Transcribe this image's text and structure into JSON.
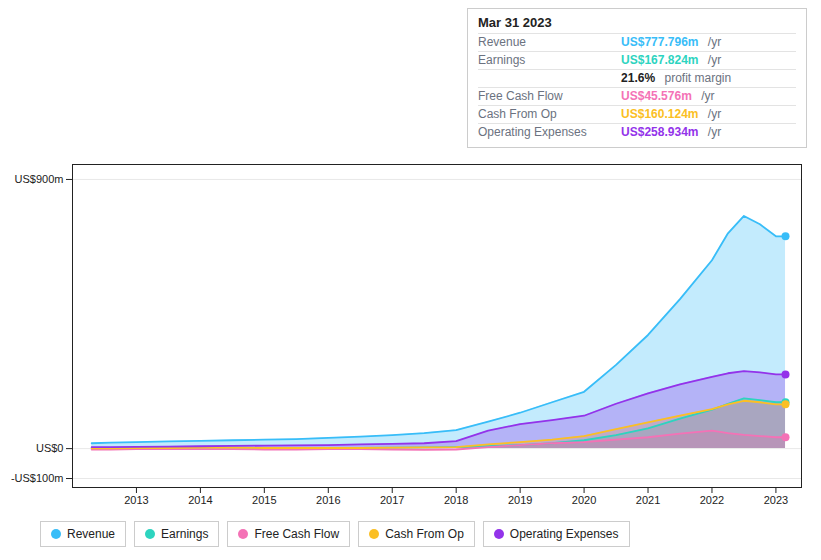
{
  "chart_data": {
    "type": "area",
    "x": [
      2012.3,
      2012.6,
      2013,
      2013.5,
      2014,
      2014.5,
      2015,
      2015.5,
      2016,
      2016.5,
      2017,
      2017.5,
      2018,
      2018.5,
      2019,
      2019.5,
      2020,
      2020.5,
      2021,
      2021.5,
      2022,
      2022.25,
      2022.5,
      2022.75,
      2023,
      2023.15
    ],
    "series": [
      {
        "name": "Revenue",
        "color": "#38bdf8",
        "values": [
          18,
          20,
          22,
          24,
          26,
          28,
          30,
          32,
          36,
          40,
          45,
          52,
          62,
          90,
          120,
          155,
          190,
          280,
          380,
          500,
          630,
          720,
          778,
          750,
          710,
          710
        ]
      },
      {
        "name": "Earnings",
        "color": "#2dd4bf",
        "values": [
          2,
          2,
          3,
          3,
          3,
          3,
          2,
          2,
          2,
          2,
          3,
          4,
          5,
          8,
          12,
          18,
          28,
          45,
          68,
          100,
          130,
          150,
          168,
          162,
          155,
          155
        ]
      },
      {
        "name": "Free Cash Flow",
        "color": "#f472b6",
        "values": [
          -3,
          -3,
          -2,
          -2,
          -2,
          -2,
          -3,
          -3,
          -2,
          -2,
          -3,
          -4,
          -3,
          5,
          12,
          18,
          22,
          30,
          38,
          50,
          60,
          52,
          46,
          42,
          38,
          38
        ]
      },
      {
        "name": "Cash From Op",
        "color": "#fbbf24",
        "values": [
          1,
          1,
          2,
          2,
          3,
          3,
          2,
          2,
          2,
          2,
          3,
          4,
          5,
          14,
          22,
          30,
          42,
          65,
          88,
          110,
          132,
          148,
          160,
          155,
          148,
          148
        ]
      },
      {
        "name": "Operating Expenses",
        "color": "#9333ea",
        "values": [
          5,
          5,
          6,
          7,
          8,
          9,
          10,
          11,
          12,
          14,
          16,
          18,
          25,
          60,
          82,
          95,
          110,
          150,
          185,
          215,
          240,
          252,
          259,
          255,
          248,
          248
        ]
      }
    ],
    "xlim": [
      2012.0,
      2023.4
    ],
    "xticks": [
      2013,
      2014,
      2015,
      2016,
      2017,
      2018,
      2019,
      2020,
      2021,
      2022,
      2023
    ],
    "ylim": [
      -130,
      950
    ],
    "yticks": [
      {
        "value": -100,
        "label": "-US$100m"
      },
      {
        "value": 0,
        "label": "US$0"
      },
      {
        "value": 900,
        "label": "US$900m"
      }
    ],
    "grid": "y",
    "annotations": {
      "title": "Mar 31 2023",
      "unit": " /yr",
      "rows": [
        {
          "label": "Revenue",
          "value": "US$777.796m",
          "color": "#38bdf8"
        },
        {
          "label": "Earnings",
          "value": "US$167.824m",
          "color": "#2dd4bf"
        },
        {
          "value": "21.6%",
          "suffix": " profit margin"
        },
        {
          "label": "Free Cash Flow",
          "value": "US$45.576m",
          "color": "#f472b6"
        },
        {
          "label": "Cash From Op",
          "value": "US$160.124m",
          "color": "#fbbf24"
        },
        {
          "label": "Operating Expenses",
          "value": "US$258.934m",
          "color": "#9333ea"
        }
      ]
    }
  }
}
